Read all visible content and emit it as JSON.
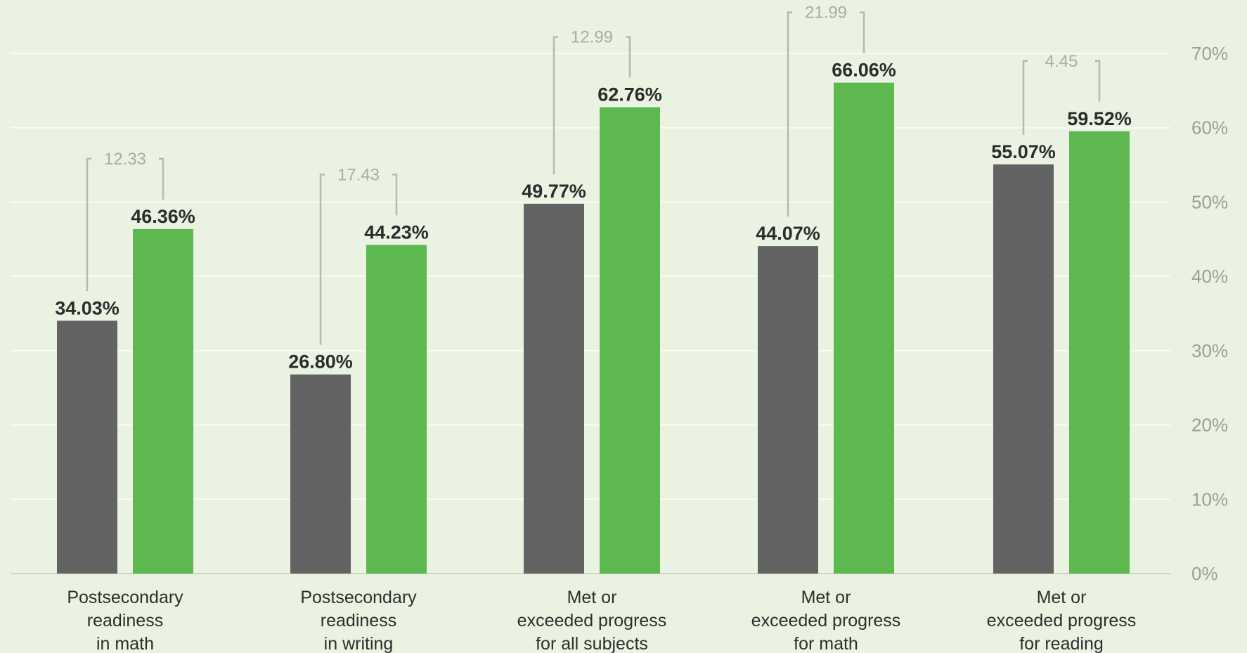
{
  "chart_data": {
    "type": "bar",
    "categories": [
      [
        "Postsecondary",
        "readiness",
        "in math"
      ],
      [
        "Postsecondary",
        "readiness",
        "in writing"
      ],
      [
        "Met or",
        "exceeded progress",
        "for all subjects"
      ],
      [
        "Met or",
        "exceeded progress",
        "for math"
      ],
      [
        "Met or",
        "exceeded progress",
        "for reading"
      ]
    ],
    "series": [
      {
        "color": "#636363",
        "values": [
          34.03,
          26.8,
          49.77,
          44.07,
          55.07
        ],
        "labels": [
          "34.03%",
          "26.80%",
          "49.77%",
          "44.07%",
          "55.07%"
        ]
      },
      {
        "color": "#5db84f",
        "values": [
          46.36,
          44.23,
          62.76,
          66.06,
          59.52
        ],
        "labels": [
          "46.36%",
          "44.23%",
          "62.76%",
          "66.06%",
          "59.52%"
        ]
      }
    ],
    "differences": [
      "12.33",
      "17.43",
      "12.99",
      "21.99",
      "4.45"
    ],
    "ylim": [
      0,
      70
    ],
    "yticks": [
      0,
      10,
      20,
      30,
      40,
      50,
      60,
      70
    ],
    "ytick_labels": [
      "0%",
      "10%",
      "20%",
      "30%",
      "40%",
      "50%",
      "60%",
      "70%"
    ],
    "y_axis_side": "right",
    "grid": true,
    "legend": "none",
    "title": "",
    "xlabel": "",
    "ylabel": ""
  }
}
